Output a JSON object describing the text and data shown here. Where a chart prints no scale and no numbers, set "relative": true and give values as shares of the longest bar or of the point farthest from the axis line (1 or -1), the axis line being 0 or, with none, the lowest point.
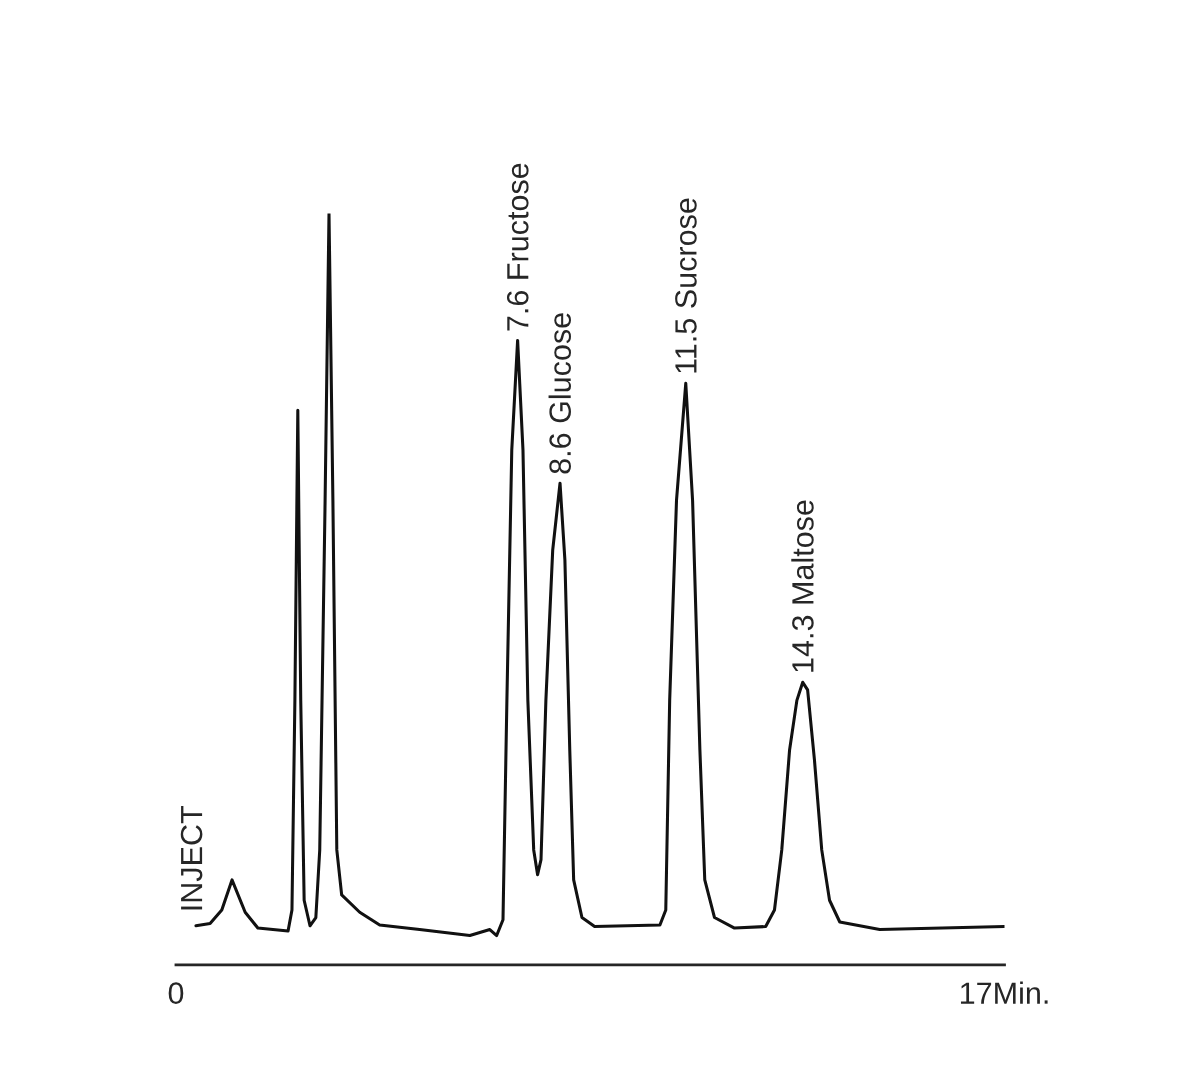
{
  "chart_data": {
    "type": "line",
    "relative": true,
    "x": [
      0.41,
      0.7,
      0.94,
      1.15,
      1.42,
      1.68,
      2.3,
      2.38,
      2.44,
      2.5,
      2.56,
      2.63,
      2.75,
      2.87,
      2.95,
      3.06,
      3.14,
      3.22,
      3.3,
      3.4,
      3.77,
      4.18,
      5.0,
      6.03,
      6.44,
      6.58,
      6.71,
      6.79,
      6.89,
      7.01,
      7.12,
      7.22,
      7.34,
      7.42,
      7.49,
      7.59,
      7.73,
      7.88,
      7.98,
      8.08,
      8.16,
      8.33,
      8.59,
      9.93,
      10.05,
      10.13,
      10.27,
      10.46,
      10.6,
      10.75,
      10.85,
      11.05,
      11.46,
      12.1,
      12.28,
      12.43,
      12.59,
      12.74,
      12.86,
      12.96,
      13.1,
      13.25,
      13.41,
      13.62,
      14.44,
      17.0
    ],
    "series": [
      {
        "color": "#111111",
        "values": [
          0.052,
          0.055,
          0.073,
          0.113,
          0.07,
          0.049,
          0.045,
          0.073,
          0.352,
          0.738,
          0.352,
          0.086,
          0.052,
          0.063,
          0.153,
          0.618,
          1.0,
          0.618,
          0.153,
          0.093,
          0.07,
          0.053,
          0.047,
          0.039,
          0.047,
          0.039,
          0.06,
          0.352,
          0.685,
          0.831,
          0.685,
          0.352,
          0.153,
          0.12,
          0.14,
          0.352,
          0.552,
          0.641,
          0.539,
          0.286,
          0.113,
          0.063,
          0.051,
          0.053,
          0.073,
          0.352,
          0.618,
          0.774,
          0.618,
          0.286,
          0.113,
          0.063,
          0.049,
          0.051,
          0.073,
          0.153,
          0.286,
          0.352,
          0.376,
          0.366,
          0.273,
          0.153,
          0.086,
          0.057,
          0.047,
          0.051
        ]
      }
    ],
    "xlim": [
      0,
      17
    ],
    "xticks": [
      0,
      {
        "value": 17,
        "label": "17Min."
      }
    ],
    "tick_labels": "x",
    "grid": false,
    "legend": false,
    "marker": "none",
    "line_style": "solid",
    "annotations": [
      "INJECT",
      {
        "text": "7.6 Fructose",
        "x": 7.01,
        "y": 0.831
      },
      {
        "text": "8.6 Glucose",
        "x": 7.88,
        "y": 0.641
      },
      {
        "text": "11.5 Sucrose",
        "x": 10.46,
        "y": 0.774
      },
      {
        "text": "14.3 Maltose",
        "x": 12.86,
        "y": 0.376
      }
    ]
  }
}
